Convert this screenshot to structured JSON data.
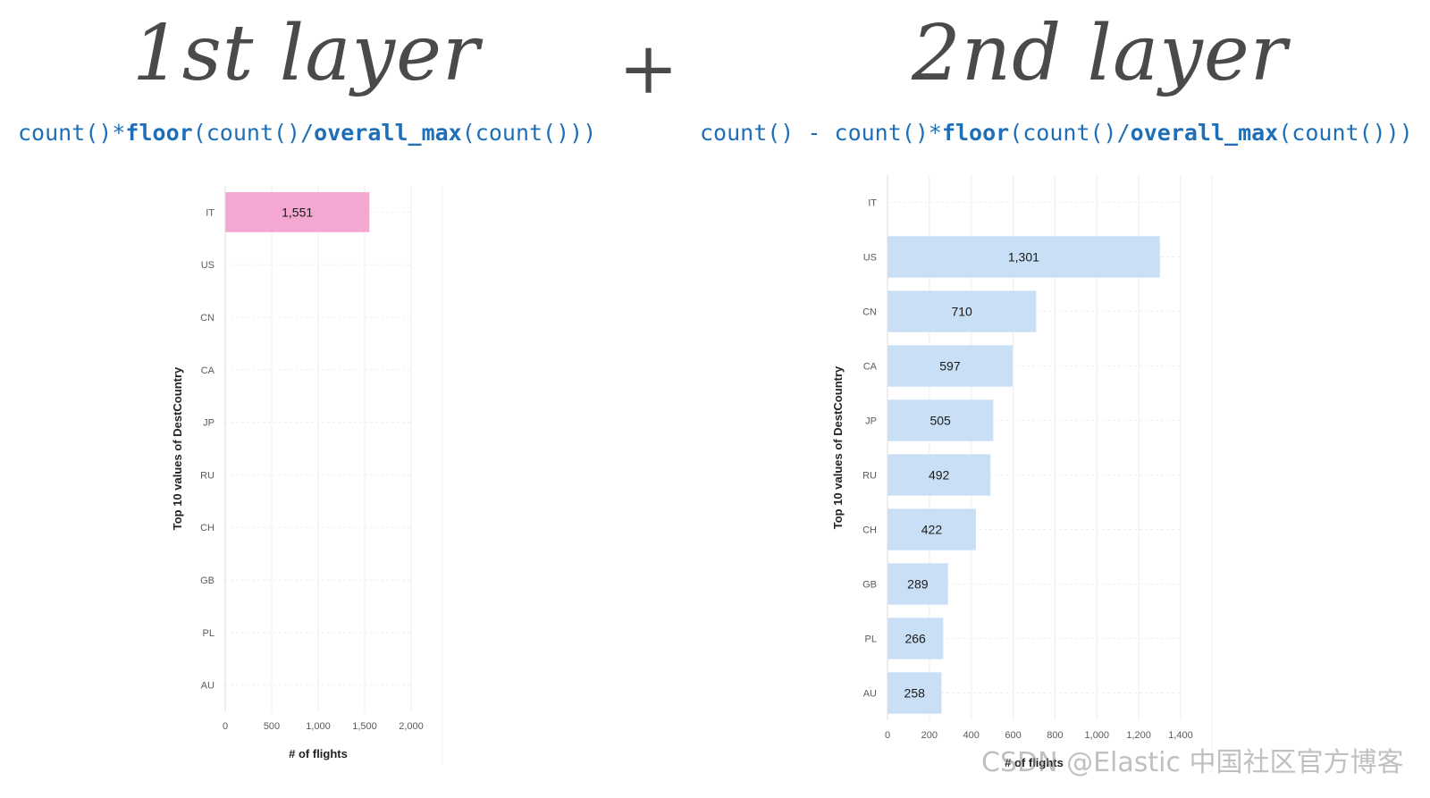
{
  "header": {
    "left_title": "1st layer",
    "right_title": "2nd layer",
    "plus": "+"
  },
  "formulas": {
    "left": [
      {
        "t": "count()*",
        "b": false
      },
      {
        "t": "floor",
        "b": true
      },
      {
        "t": "(count()/",
        "b": false
      },
      {
        "t": "overall_max",
        "b": true
      },
      {
        "t": "(count()))",
        "b": false
      }
    ],
    "right": [
      {
        "t": "count() - count()*",
        "b": false
      },
      {
        "t": "floor",
        "b": true
      },
      {
        "t": "(count()/",
        "b": false
      },
      {
        "t": "overall_max",
        "b": true
      },
      {
        "t": "(count()))",
        "b": false
      }
    ]
  },
  "chart_data": [
    {
      "type": "bar",
      "orientation": "horizontal",
      "categories": [
        "IT",
        "US",
        "CN",
        "CA",
        "JP",
        "RU",
        "CH",
        "GB",
        "PL",
        "AU"
      ],
      "values": [
        1551,
        0,
        0,
        0,
        0,
        0,
        0,
        0,
        0,
        0
      ],
      "value_labels": [
        "1,551",
        "",
        "",
        "",
        "",
        "",
        "",
        "",
        "",
        ""
      ],
      "xlabel": "# of flights",
      "ylabel": "Top 10 values of DestCountry",
      "xlim": [
        0,
        2000
      ],
      "xticks": [
        "0",
        "500",
        "1,000",
        "1,500",
        "2,000"
      ],
      "xtick_values": [
        0,
        500,
        1000,
        1500,
        2000
      ],
      "bar_color": "#f4a7d0",
      "grid": true
    },
    {
      "type": "bar",
      "orientation": "horizontal",
      "categories": [
        "IT",
        "US",
        "CN",
        "CA",
        "JP",
        "RU",
        "CH",
        "GB",
        "PL",
        "AU"
      ],
      "values": [
        0,
        1301,
        710,
        597,
        505,
        492,
        422,
        289,
        266,
        258
      ],
      "value_labels": [
        "",
        "1,301",
        "710",
        "597",
        "505",
        "492",
        "422",
        "289",
        "266",
        "258"
      ],
      "xlabel": "# of flights",
      "ylabel": "Top 10 values of DestCountry",
      "xlim": [
        0,
        1400
      ],
      "xticks": [
        "0",
        "200",
        "400",
        "600",
        "800",
        "1,000",
        "1,200",
        "1,400"
      ],
      "xtick_values": [
        0,
        200,
        400,
        600,
        800,
        1000,
        1200,
        1400
      ],
      "bar_color": "#c9dff5",
      "grid": true
    }
  ],
  "watermark": "CSDN @Elastic 中国社区官方博客"
}
